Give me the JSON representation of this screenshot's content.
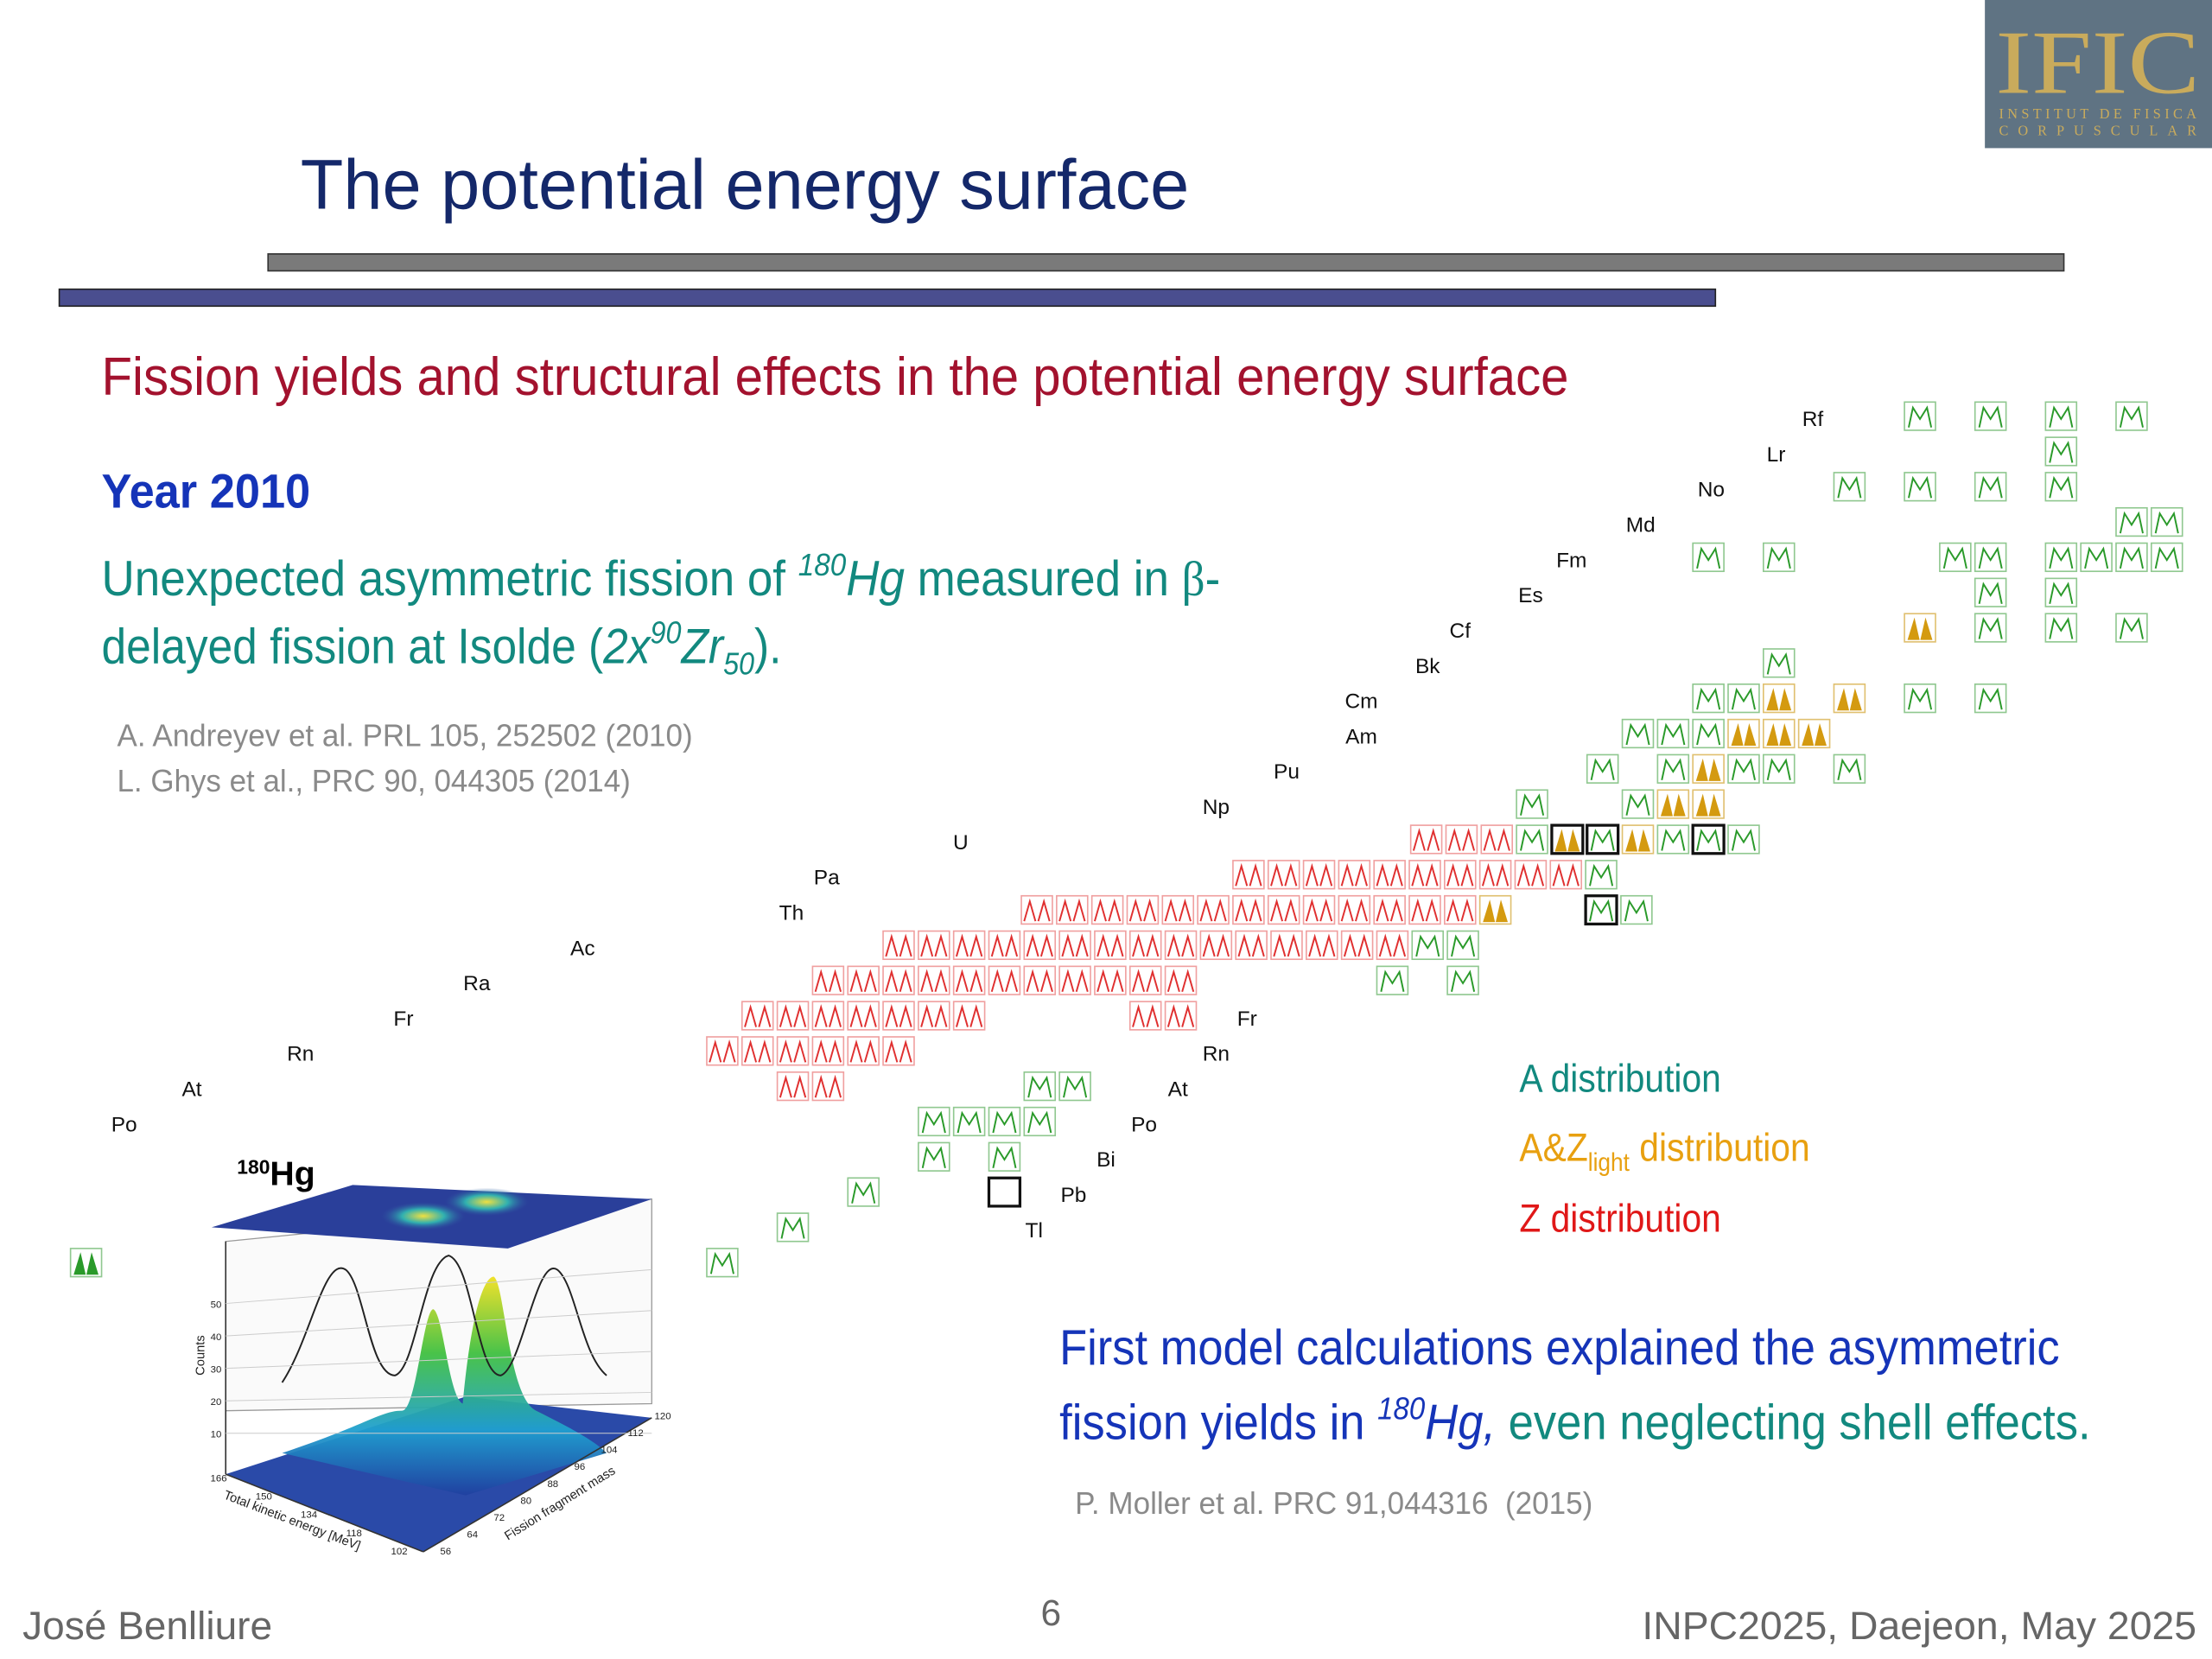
{
  "logo": {
    "name": "IFIC",
    "line1": "INSTITUT DE FISICA",
    "line2": "CORPUSCULAR"
  },
  "title": "The potential energy surface",
  "subtitle": "Fission yields and structural effects in the potential energy surface",
  "year": "Year 2010",
  "finding": {
    "t1": "Unexpected asymmetric fission of ",
    "sup1": "180",
    "el1": "Hg",
    "t2": " measured in ",
    "beta": "β",
    "t3": "-",
    "t4": "delayed fission at Isolde (",
    "it1": "2x",
    "sup2": "90",
    "it2": "Zr",
    "sub2": "50",
    "t5": ")."
  },
  "references": [
    "A. Andreyev et al. PRL 105, 252502 (2010)",
    "L. Ghys et al., PRC 90, 044305 (2014)"
  ],
  "chart": {
    "elements_upper": [
      "Rf",
      "Lr",
      "No",
      "Md",
      "Fm",
      "Es",
      "Cf",
      "Bk",
      "Cm",
      "Am",
      "Pu",
      "Np",
      "U",
      "Pa",
      "Th",
      "Ac",
      "Ra",
      "Fr",
      "Rn",
      "At",
      "Po"
    ],
    "elements_lower": [
      "Fr",
      "Rn",
      "At",
      "Po",
      "Bi",
      "Pb",
      "Tl"
    ]
  },
  "legend": {
    "a": "A distribution",
    "az": "A&Z",
    "az_sub": "light",
    "az_rest": " distribution",
    "z": "Z distribution"
  },
  "conclusion": {
    "l1": "First model calculations explained the asymmetric",
    "t1": "fission yields in ",
    "sup": "180",
    "el": "Hg,",
    "t2": " even neglecting shell effects."
  },
  "conclusion_reference": "P. Moller et al. PRC 91,044316  (2015)",
  "inset": {
    "label_sup": "180",
    "label": "Hg",
    "y_title": "Counts",
    "x_title": "Total kinetic energy [MeV]",
    "z_title": "Fission fragment mass",
    "y_ticks": [
      10,
      20,
      30,
      40,
      50
    ],
    "x_ticks": [
      166,
      150,
      134,
      118,
      102
    ],
    "z_ticks": [
      56,
      64,
      72,
      80,
      88,
      96,
      104,
      112,
      120
    ]
  },
  "footer": {
    "author": "José Benlliure",
    "page": "6",
    "event": "INPC2025, Daejeon, May 2025"
  }
}
